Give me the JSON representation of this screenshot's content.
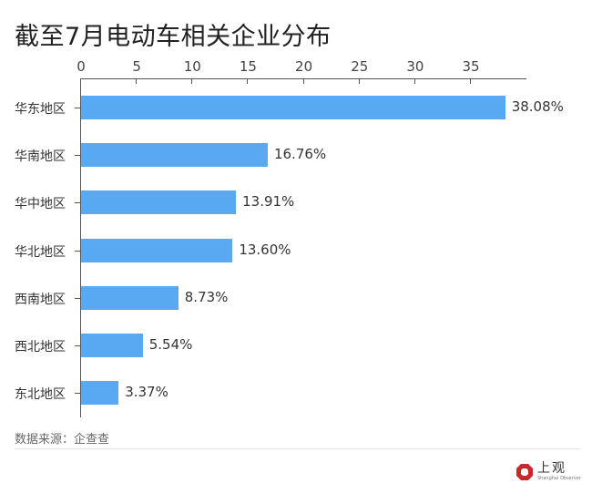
{
  "title": "截至7月电动车相关企业分布",
  "source": "数据来源：企查查",
  "logo": {
    "cn": "上观",
    "en": "Shanghai Observer",
    "color": "#c8272d"
  },
  "bar_color": "#59a9f2",
  "axis": {
    "ticks": [
      "0",
      "5",
      "10",
      "15",
      "20",
      "25",
      "30",
      "35"
    ]
  },
  "chart_data": {
    "type": "bar",
    "orientation": "horizontal",
    "title": "截至7月电动车相关企业分布",
    "categories": [
      "华东地区",
      "华南地区",
      "华中地区",
      "华北地区",
      "西南地区",
      "西北地区",
      "东北地区"
    ],
    "values": [
      38.08,
      16.76,
      13.91,
      13.6,
      8.73,
      5.54,
      3.37
    ],
    "value_labels": [
      "38.08%",
      "16.76%",
      "13.91%",
      "13.60%",
      "8.73%",
      "5.54%",
      "3.37%"
    ],
    "xlabel": "",
    "ylabel": "",
    "xlim": [
      0,
      40
    ],
    "xticks": [
      0,
      5,
      10,
      15,
      20,
      25,
      30,
      35
    ],
    "x_axis_position": "top",
    "grid": false,
    "legend": null,
    "source": "数据来源：企查查"
  }
}
